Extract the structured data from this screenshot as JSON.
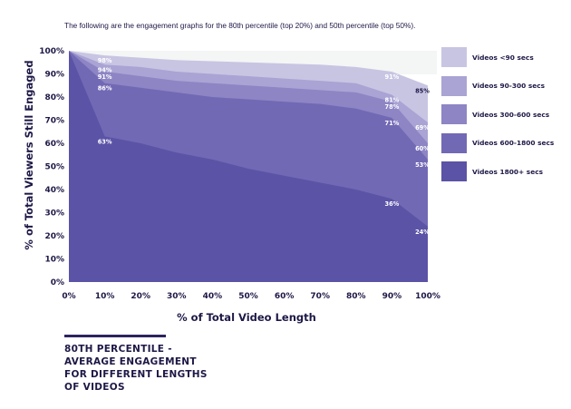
{
  "intro_text": "The following are the engagement graphs for the 80th percentile (top 20%) and 50th percentile (top 50%).",
  "bottom_title": [
    "80TH PERCENTILE -",
    "AVERAGE ENGAGEMENT",
    "FOR DIFFERENT LENGTHS",
    "OF VIDEOS"
  ],
  "colors": {
    "background_band": "#f4f5f5",
    "text": "#1d1846",
    "series": [
      "#c8c5e3",
      "#a9a4d4",
      "#8d85c4",
      "#7269b5",
      "#5b53a6"
    ]
  },
  "chart_data": {
    "type": "area",
    "title": "",
    "xlabel": "% of Total Video Length",
    "ylabel": "% of Total Viewers Still Engaged",
    "x": [
      0,
      10,
      20,
      30,
      40,
      50,
      60,
      70,
      80,
      90,
      100
    ],
    "x_tick_labels": [
      "0%",
      "10%",
      "20%",
      "30%",
      "40%",
      "50%",
      "60%",
      "70%",
      "80%",
      "90%",
      "100%"
    ],
    "y_tick_labels": [
      "0%",
      "10%",
      "20%",
      "30%",
      "40%",
      "50%",
      "60%",
      "70%",
      "80%",
      "90%",
      "100%"
    ],
    "ylim": [
      0,
      100
    ],
    "grid": false,
    "legend_position": "right",
    "series": [
      {
        "name": "Videos <90 secs",
        "values": [
          100,
          98,
          97,
          96,
          95.5,
          95,
          94.5,
          94,
          93,
          91,
          85
        ]
      },
      {
        "name": "Videos 90-300 secs",
        "values": [
          100,
          94,
          93,
          91,
          90,
          89,
          88,
          87,
          86,
          81,
          69
        ]
      },
      {
        "name": "Videos 300-600 secs",
        "values": [
          100,
          91,
          89,
          87,
          86,
          85,
          84,
          83,
          82,
          78,
          60
        ]
      },
      {
        "name": "Videos 600-1800 secs",
        "values": [
          100,
          86,
          84,
          82,
          80,
          79,
          78,
          77,
          75,
          71,
          53
        ]
      },
      {
        "name": "Videos 1800+ secs",
        "values": [
          100,
          63,
          60,
          56,
          53,
          49,
          46,
          43,
          40,
          36,
          24
        ]
      }
    ],
    "data_labels": [
      {
        "series": 0,
        "x": 10,
        "text": "98%"
      },
      {
        "series": 1,
        "x": 10,
        "text": "94%"
      },
      {
        "series": 2,
        "x": 10,
        "text": "91%"
      },
      {
        "series": 3,
        "x": 10,
        "text": "86%"
      },
      {
        "series": 4,
        "x": 10,
        "text": "63%"
      },
      {
        "series": 0,
        "x": 90,
        "text": "91%"
      },
      {
        "series": 1,
        "x": 90,
        "text": "81%"
      },
      {
        "series": 2,
        "x": 90,
        "text": "78%"
      },
      {
        "series": 3,
        "x": 90,
        "text": "71%"
      },
      {
        "series": 4,
        "x": 90,
        "text": "36%"
      },
      {
        "series": 0,
        "x": 100,
        "text": "85%"
      },
      {
        "series": 1,
        "x": 100,
        "text": "69%"
      },
      {
        "series": 2,
        "x": 100,
        "text": "60%"
      },
      {
        "series": 3,
        "x": 100,
        "text": "53%"
      },
      {
        "series": 4,
        "x": 100,
        "text": "24%"
      }
    ]
  }
}
